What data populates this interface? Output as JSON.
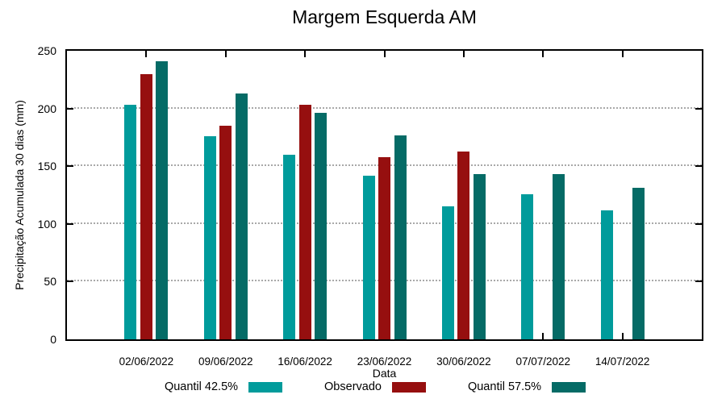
{
  "title": "Margem Esquerda AM",
  "chart_data": {
    "type": "bar",
    "title": "Margem Esquerda AM",
    "xlabel": "Data",
    "ylabel": "Precipitação Acumulada 30 dias (mm)",
    "categories": [
      "02/06/2022",
      "09/06/2022",
      "16/06/2022",
      "23/06/2022",
      "30/06/2022",
      "07/07/2022",
      "14/07/2022"
    ],
    "series": [
      {
        "name": "Quantil 42.5%",
        "color": "#009B9B",
        "values": [
          203,
          176,
          160,
          142,
          115,
          126,
          112
        ]
      },
      {
        "name": "Observado",
        "color": "#960F0F",
        "values": [
          230,
          185,
          203,
          158,
          163,
          null,
          null
        ]
      },
      {
        "name": "Quantil 57.5%",
        "color": "#056B66",
        "values": [
          241,
          213,
          196,
          177,
          143,
          143,
          131
        ]
      }
    ],
    "ylim": [
      0,
      250
    ],
    "yticks": [
      0,
      50,
      100,
      150,
      200,
      250
    ],
    "grid": true,
    "grid_color": "#a9a9a9",
    "legend_position": "bottom",
    "background": "#ffffff",
    "axis_color": "#000000"
  }
}
